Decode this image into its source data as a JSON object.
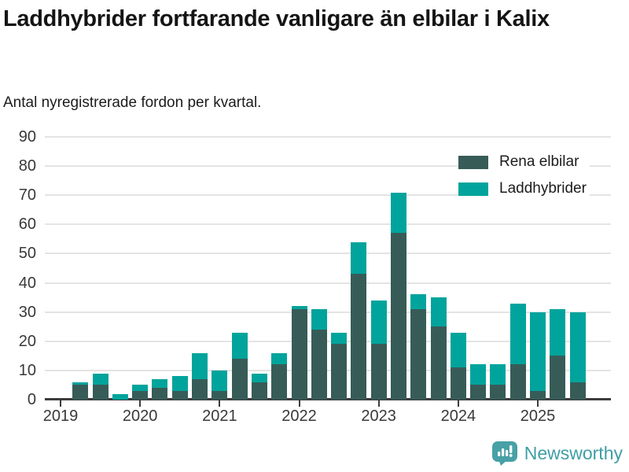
{
  "header": {
    "title": "Laddhybrider fortfarande vanligare än elbilar i Kalix",
    "subtitle": "Antal nyregistrerade fordon per kvartal."
  },
  "legend": {
    "items": [
      {
        "label": "Rena elbilar",
        "color": "#375c58"
      },
      {
        "label": "Laddhybrider",
        "color": "#00a49c"
      }
    ]
  },
  "footer": {
    "brand": "Newsworthy",
    "brand_color": "#3e9ea4",
    "logo_icon": "bar-chart-speech-bubble-icon"
  },
  "colors": {
    "electric_series": "#375c58",
    "hybrid_series": "#00a49c",
    "gridline": "#e4e4e4",
    "axis": "#3c3c3c",
    "text": "#1c1c1c"
  },
  "chart_data": {
    "type": "bar",
    "stacked": true,
    "title": "Laddhybrider fortfarande vanligare än elbilar i Kalix",
    "subtitle": "Antal nyregistrerade fordon per kvartal.",
    "xlabel": "",
    "ylabel": "",
    "ylim": [
      0,
      90
    ],
    "y_ticks": [
      0,
      10,
      20,
      30,
      40,
      50,
      60,
      70,
      80,
      90
    ],
    "grid": true,
    "legend_position": "top-right",
    "x_tick_labels": [
      "2019",
      "2020",
      "2021",
      "2022",
      "2023",
      "2024",
      "2025"
    ],
    "categories": [
      "2019 Q1",
      "2019 Q2",
      "2019 Q3",
      "2019 Q4",
      "2020 Q1",
      "2020 Q2",
      "2020 Q3",
      "2020 Q4",
      "2021 Q1",
      "2021 Q2",
      "2021 Q3",
      "2021 Q4",
      "2022 Q1",
      "2022 Q2",
      "2022 Q3",
      "2022 Q4",
      "2023 Q1",
      "2023 Q2",
      "2023 Q3",
      "2023 Q4",
      "2024 Q1",
      "2024 Q2",
      "2024 Q3",
      "2024 Q4",
      "2025 Q1",
      "2025 Q2",
      "2025 Q3"
    ],
    "series": [
      {
        "name": "Rena elbilar",
        "color": "#375c58",
        "values": [
          0,
          5,
          5,
          0,
          3,
          4,
          3,
          7,
          3,
          14,
          6,
          12,
          31,
          24,
          19,
          43,
          19,
          57,
          31,
          25,
          11,
          5,
          5,
          12,
          3,
          15,
          6
        ]
      },
      {
        "name": "Laddhybrider",
        "color": "#00a49c",
        "values": [
          0,
          1,
          4,
          2,
          2,
          3,
          5,
          9,
          7,
          9,
          3,
          4,
          1,
          7,
          4,
          11,
          15,
          14,
          5,
          10,
          12,
          7,
          7,
          21,
          27,
          16,
          24
        ]
      }
    ],
    "totals": [
      0,
      6,
      9,
      2,
      5,
      7,
      8,
      16,
      10,
      23,
      9,
      16,
      32,
      31,
      23,
      54,
      34,
      71,
      36,
      35,
      23,
      12,
      12,
      33,
      30,
      31,
      30
    ]
  }
}
